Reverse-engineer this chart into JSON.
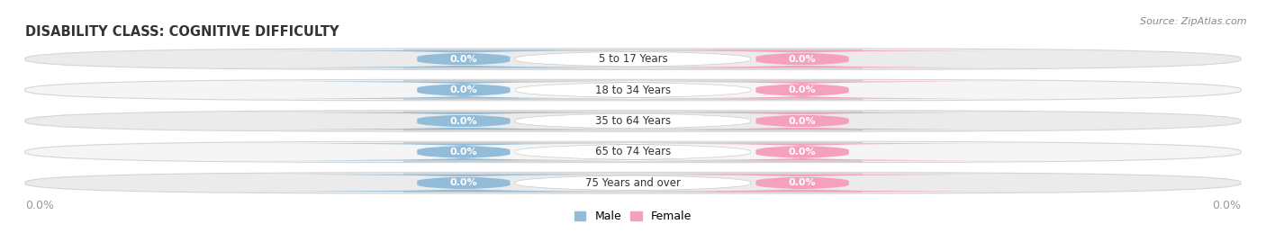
{
  "title": "DISABILITY CLASS: COGNITIVE DIFFICULTY",
  "source": "Source: ZipAtlas.com",
  "categories": [
    "5 to 17 Years",
    "18 to 34 Years",
    "35 to 64 Years",
    "65 to 74 Years",
    "75 Years and over"
  ],
  "male_values": [
    0.0,
    0.0,
    0.0,
    0.0,
    0.0
  ],
  "female_values": [
    0.0,
    0.0,
    0.0,
    0.0,
    0.0
  ],
  "male_color": "#92bcd8",
  "female_color": "#f5a0bc",
  "row_bg_color": "#ebebeb",
  "row_alt_bg_color": "#f5f5f5",
  "title_color": "#333333",
  "source_color": "#888888",
  "legend_male_color": "#92bcd8",
  "legend_female_color": "#f5a0bc",
  "figsize": [
    14.06,
    2.69
  ],
  "dpi": 100,
  "x_axis_left_label": "0.0%",
  "x_axis_right_label": "0.0%"
}
